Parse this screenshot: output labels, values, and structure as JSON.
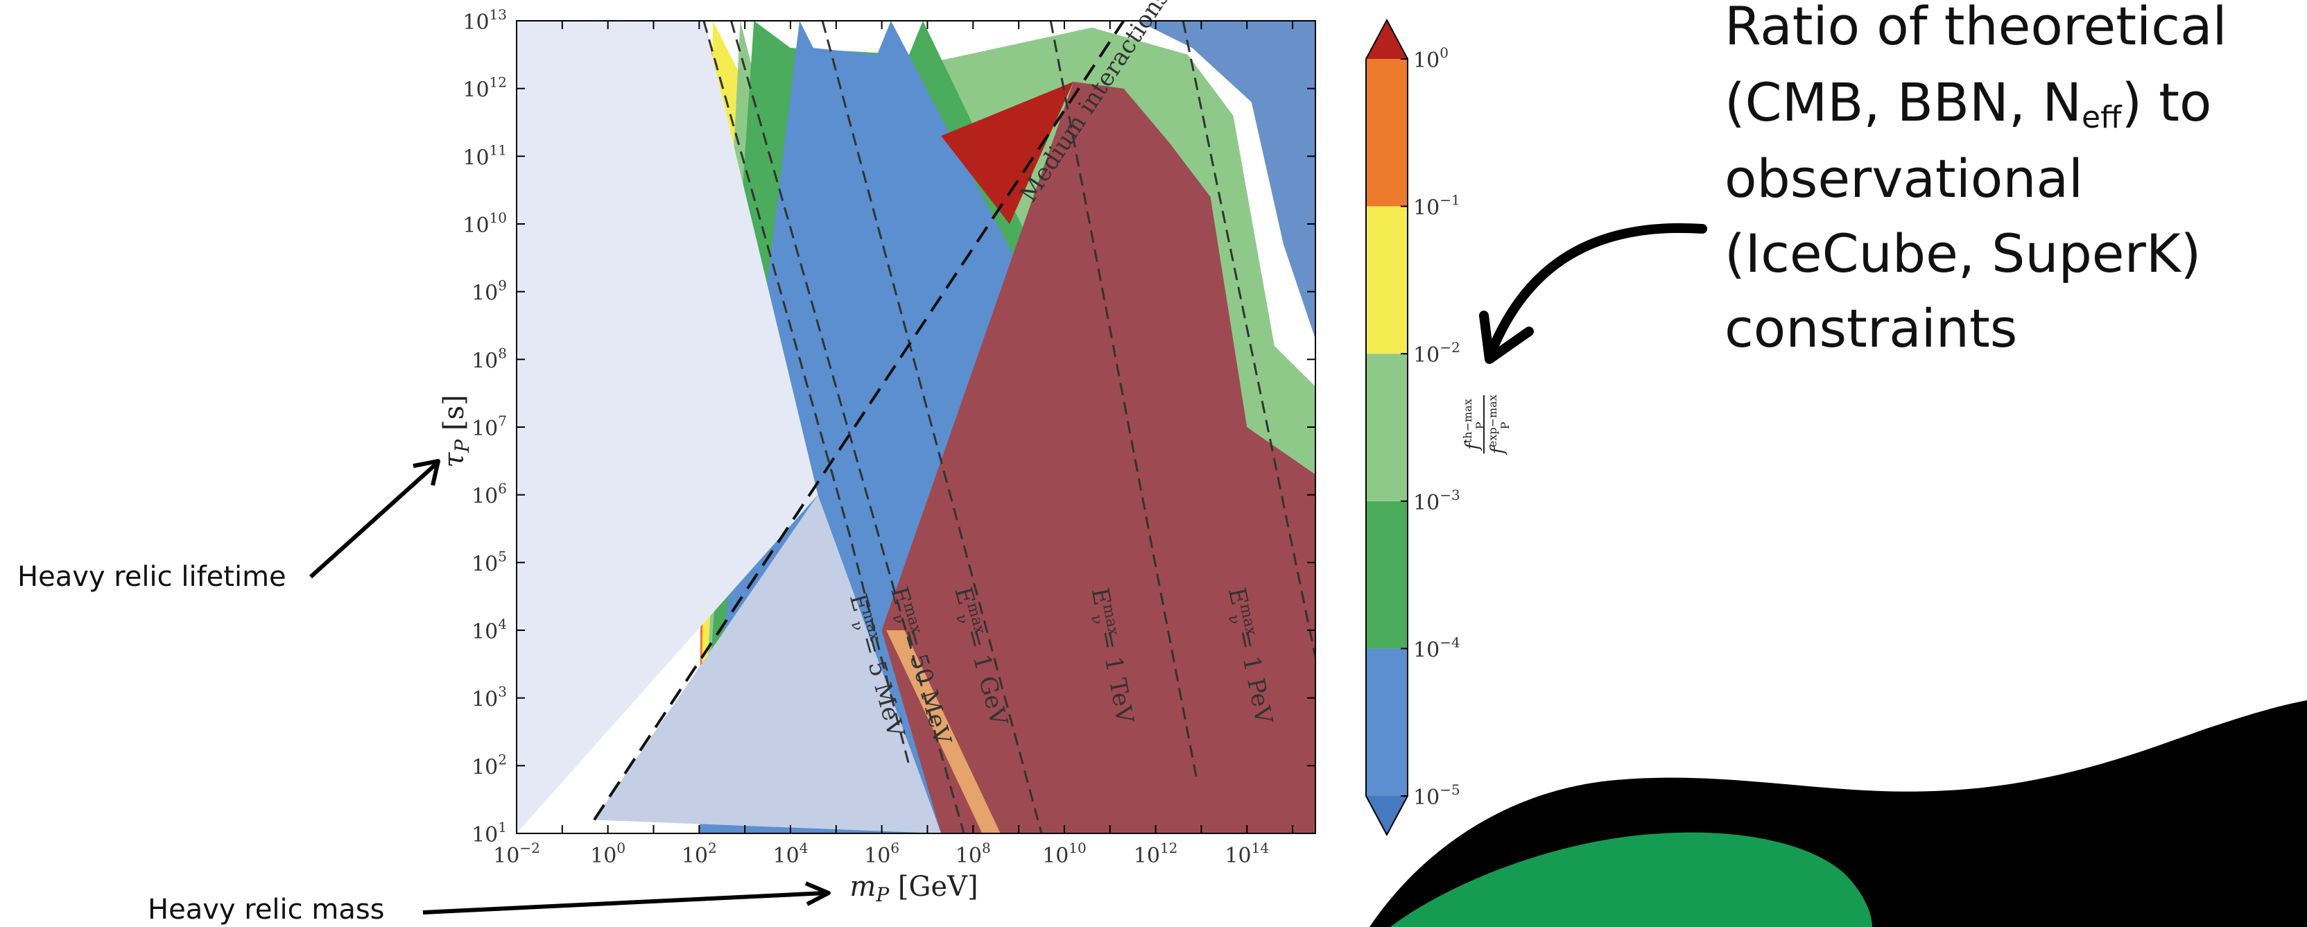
{
  "chart_data": {
    "type": "heatmap",
    "title": "",
    "xlabel": "m_P [GeV]",
    "ylabel": "τ_P [s]",
    "x_scale": "log",
    "y_scale": "log",
    "xlim": [
      -2,
      15.5
    ],
    "ylim": [
      1,
      13
    ],
    "x_ticks": [
      {
        "exp": -2,
        "label": "10",
        "sup": "−2"
      },
      {
        "exp": 0,
        "label": "10",
        "sup": "0"
      },
      {
        "exp": 2,
        "label": "10",
        "sup": "2"
      },
      {
        "exp": 4,
        "label": "10",
        "sup": "4"
      },
      {
        "exp": 6,
        "label": "10",
        "sup": "6"
      },
      {
        "exp": 8,
        "label": "10",
        "sup": "8"
      },
      {
        "exp": 10,
        "label": "10",
        "sup": "10"
      },
      {
        "exp": 12,
        "label": "10",
        "sup": "12"
      },
      {
        "exp": 14,
        "label": "10",
        "sup": "14"
      }
    ],
    "y_ticks": [
      {
        "exp": 1,
        "label": "10",
        "sup": "1"
      },
      {
        "exp": 2,
        "label": "10",
        "sup": "2"
      },
      {
        "exp": 3,
        "label": "10",
        "sup": "3"
      },
      {
        "exp": 4,
        "label": "10",
        "sup": "4"
      },
      {
        "exp": 5,
        "label": "10",
        "sup": "5"
      },
      {
        "exp": 6,
        "label": "10",
        "sup": "6"
      },
      {
        "exp": 7,
        "label": "10",
        "sup": "7"
      },
      {
        "exp": 8,
        "label": "10",
        "sup": "8"
      },
      {
        "exp": 9,
        "label": "10",
        "sup": "9"
      },
      {
        "exp": 10,
        "label": "10",
        "sup": "10"
      },
      {
        "exp": 11,
        "label": "10",
        "sup": "11"
      },
      {
        "exp": 12,
        "label": "10",
        "sup": "12"
      },
      {
        "exp": 13,
        "label": "10",
        "sup": "13"
      }
    ],
    "colorbar": {
      "label": "f_P^{th−max} / f_P^{exp−max}",
      "label_num": "f",
      "label_num_sub": "P",
      "label_num_sup": "th−max",
      "label_den": "f",
      "label_den_sub": "P",
      "label_den_sup": "exp−max",
      "scale": "log",
      "range": [
        -5,
        0
      ],
      "extend": "both",
      "bands": [
        {
          "from": -5,
          "to": -4,
          "color": "#5b8fcf"
        },
        {
          "from": -4,
          "to": -3,
          "color": "#4aac5c"
        },
        {
          "from": -3,
          "to": -2,
          "color": "#8fc98a"
        },
        {
          "from": -2,
          "to": -1,
          "color": "#f5ec52"
        },
        {
          "from": -1,
          "to": 0,
          "color": "#ee7b2c"
        }
      ],
      "extend_low_color": "#4679c0",
      "extend_high_color": "#b5221c",
      "ticks": [
        {
          "value": 0,
          "label": "10",
          "sup": "0"
        },
        {
          "value": -1,
          "label": "10",
          "sup": "−1"
        },
        {
          "value": -2,
          "label": "10",
          "sup": "−2"
        },
        {
          "value": -3,
          "label": "10",
          "sup": "−3"
        },
        {
          "value": -4,
          "label": "10",
          "sup": "−4"
        },
        {
          "value": -5,
          "label": "10",
          "sup": "−5"
        }
      ]
    },
    "regions": [
      {
        "name": "excluded-region",
        "color": "#e5e9f6",
        "polygon": [
          [
            -2,
            1
          ],
          [
            -2,
            13
          ],
          [
            2.1,
            13
          ],
          [
            4.6,
            6
          ]
        ]
      },
      {
        "name": "suppressed-region",
        "color": "#c4cfe5",
        "polygon": [
          [
            -0.3,
            1.2
          ],
          [
            4.6,
            6
          ],
          [
            7.3,
            1
          ]
        ]
      },
      {
        "name": "saturated-region",
        "color": "#9e4a52",
        "polygon": [
          [
            10.2,
            12.1
          ],
          [
            11.3,
            12
          ],
          [
            12.3,
            11.2
          ],
          [
            13.2,
            10.4
          ],
          [
            14,
            7
          ],
          [
            15.5,
            6.3
          ],
          [
            15.5,
            1
          ],
          [
            7.3,
            1
          ],
          [
            6,
            4
          ]
        ]
      },
      {
        "name": "band-high-1",
        "color": "#b5221c",
        "polygon": [
          [
            7.3,
            11.3
          ],
          [
            10.2,
            12.1
          ],
          [
            8.8,
            10
          ]
        ]
      },
      {
        "name": "band-high-2",
        "color": "#e4a46b",
        "polygon": [
          [
            8.2,
            1
          ],
          [
            8.6,
            1
          ],
          [
            6.5,
            4
          ],
          [
            6.1,
            4
          ]
        ]
      }
    ],
    "contours": [
      {
        "level": -1,
        "color": "#ee7b2c",
        "path": [
          [
            2.1,
            13
          ],
          [
            2.8,
            11.2
          ],
          [
            4,
            10.6
          ],
          [
            6.2,
            11.1
          ],
          [
            8.2,
            11.7
          ],
          [
            10.2,
            12.5
          ],
          [
            11.4,
            12.4
          ],
          [
            12.2,
            11.6
          ],
          [
            13.3,
            10.6
          ],
          [
            14,
            7.2
          ],
          [
            15.5,
            6.5
          ]
        ]
      },
      {
        "level": -1.5,
        "color": "#e4a46b",
        "path": [
          [
            11.4,
            12.1
          ],
          [
            12,
            11.3
          ],
          [
            13.2,
            10.4
          ],
          [
            13.9,
            7
          ],
          [
            15.5,
            6.2
          ]
        ]
      },
      {
        "level": -2,
        "color": "#f5ec52",
        "path": [
          [
            2.3,
            13
          ],
          [
            3.2,
            11.8
          ],
          [
            5.6,
            12
          ],
          [
            8.5,
            12.4
          ],
          [
            11.6,
            12.6
          ],
          [
            12.5,
            12
          ],
          [
            13.6,
            10.9
          ],
          [
            14.3,
            7.6
          ],
          [
            15.5,
            6.9
          ]
        ]
      },
      {
        "level": -3,
        "color": "#8fc98a",
        "path": [
          [
            2.9,
            13
          ],
          [
            3.2,
            12.2
          ],
          [
            6.5,
            12.3
          ],
          [
            10.6,
            12.9
          ],
          [
            12.7,
            12.5
          ],
          [
            13.7,
            11.6
          ],
          [
            14.6,
            8.2
          ],
          [
            15.5,
            7.6
          ]
        ]
      },
      {
        "level": -4,
        "color": "#4aac5c",
        "path": [
          [
            3.2,
            13
          ],
          [
            4,
            12.6
          ],
          [
            6.6,
            12.5
          ],
          [
            6.9,
            13
          ]
        ]
      },
      {
        "level": -5,
        "color": "#5b8fcf",
        "path": [
          [
            4.2,
            13
          ],
          [
            4.5,
            12.6
          ],
          [
            5.9,
            12.5
          ],
          [
            6.2,
            13
          ]
        ]
      }
    ],
    "islands": [
      {
        "name": "low-island",
        "color": "#5b8fcf",
        "polygon": [
          [
            5.2,
            8.5
          ],
          [
            5.7,
            8.2
          ],
          [
            6.1,
            7.5
          ],
          [
            5.9,
            6.9
          ],
          [
            5.3,
            7.2
          ],
          [
            5.0,
            8.1
          ]
        ]
      },
      {
        "name": "top-right",
        "color": "#6891c9",
        "polygon": [
          [
            11.6,
            13
          ],
          [
            15.5,
            13
          ],
          [
            15.5,
            8.3
          ],
          [
            14.8,
            9.7
          ],
          [
            14.1,
            11.8
          ],
          [
            12.8,
            12.6
          ]
        ]
      }
    ],
    "lines": [
      {
        "name": "E_ν^max = 5 MeV",
        "label": "E",
        "label_sup": "max",
        "label_sub": "ν",
        "label_rest": " = 5 MeV",
        "dash": "dashed",
        "points": [
          [
            2.1,
            13
          ],
          [
            5.3,
            5.4
          ],
          [
            6.6,
            2
          ]
        ],
        "label_pos": [
          5.3,
          4.5
        ]
      },
      {
        "name": "E_ν^max = 50 MeV",
        "label": "E",
        "label_sup": "max",
        "label_sub": "ν",
        "label_rest": " = 50 MeV",
        "dash": "dashed",
        "points": [
          [
            2.7,
            13
          ],
          [
            7.8,
            1
          ]
        ],
        "label_pos": [
          6.2,
          4.6
        ]
      },
      {
        "name": "E_ν^max = 1 GeV",
        "label": "E",
        "label_sup": "max",
        "label_sub": "ν",
        "label_rest": " = 1 GeV",
        "dash": "dashed",
        "points": [
          [
            4.7,
            13
          ],
          [
            9.5,
            1
          ]
        ],
        "label_pos": [
          7.6,
          4.6
        ]
      },
      {
        "name": "E_ν^max = 1 TeV",
        "label": "E",
        "label_sup": "max",
        "label_sub": "ν",
        "label_rest": " = 1 TeV",
        "dash": "dashed",
        "points": [
          [
            9.7,
            13
          ],
          [
            12.9,
            1.8
          ]
        ],
        "label_pos": [
          10.6,
          4.6
        ]
      },
      {
        "name": "E_ν^max = 1 PeV",
        "label": "E",
        "label_sup": "max",
        "label_sub": "ν",
        "label_rest": " = 1 PeV",
        "dash": "dashed",
        "points": [
          [
            12.6,
            13
          ],
          [
            15.5,
            3.6
          ]
        ],
        "label_pos": [
          13.6,
          4.6
        ]
      },
      {
        "name": "Medium interactions",
        "label": "Medium interactions",
        "dash": "dashed",
        "points": [
          [
            -0.3,
            1.2
          ],
          [
            11.3,
            13
          ]
        ],
        "label_pos": [
          9.3,
          10.3
        ]
      }
    ]
  },
  "annotations": {
    "colorbar_title_line1": "Ratio of theoretical",
    "colorbar_title_line2_a": "(CMB, BBN, N",
    "colorbar_title_line2_sub": "eff",
    "colorbar_title_line2_b": ") to",
    "colorbar_title_line3": "observational",
    "colorbar_title_line4": "(IceCube, SuperK)",
    "colorbar_title_line5": "constraints",
    "lifetime": "Heavy relic lifetime",
    "mass": "Heavy relic mass"
  },
  "colors": {
    "blob_black": "#000000",
    "blob_green": "#169c52"
  }
}
